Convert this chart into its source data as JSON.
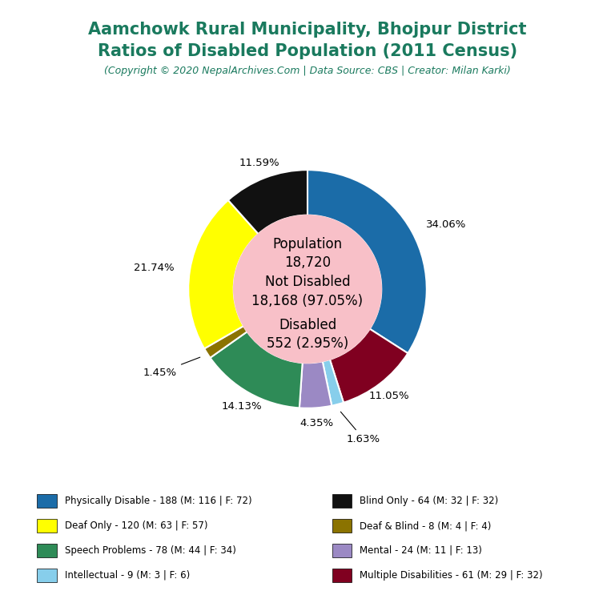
{
  "title_line1": "Aamchowk Rural Municipality, Bhojpur District",
  "title_line2": "Ratios of Disabled Population (2011 Census)",
  "subtitle": "(Copyright © 2020 NepalArchives.Com | Data Source: CBS | Creator: Milan Karki)",
  "title_color": "#1a7a5e",
  "subtitle_color": "#1a7a5e",
  "background_color": "#ffffff",
  "center_bg": "#f8c0c8",
  "slices": [
    {
      "label": "Physically Disable - 188 (M: 116 | F: 72)",
      "value": 188,
      "pct": 34.06,
      "color": "#1b6ca8"
    },
    {
      "label": "Multiple Disabilities - 61 (M: 29 | F: 32)",
      "value": 61,
      "pct": 11.05,
      "color": "#800020"
    },
    {
      "label": "Intellectual - 9 (M: 3 | F: 6)",
      "value": 9,
      "pct": 1.63,
      "color": "#87ceeb"
    },
    {
      "label": "Mental - 24 (M: 11 | F: 13)",
      "value": 24,
      "pct": 4.35,
      "color": "#9b89c4"
    },
    {
      "label": "Speech Problems - 78 (M: 44 | F: 34)",
      "value": 78,
      "pct": 14.13,
      "color": "#2e8b57"
    },
    {
      "label": "Deaf & Blind - 8 (M: 4 | F: 4)",
      "value": 8,
      "pct": 1.45,
      "color": "#8b7300"
    },
    {
      "label": "Deaf Only - 120 (M: 63 | F: 57)",
      "value": 120,
      "pct": 21.74,
      "color": "#ffff00"
    },
    {
      "label": "Blind Only - 64 (M: 32 | F: 32)",
      "value": 64,
      "pct": 11.59,
      "color": "#111111"
    }
  ],
  "legend_entries": [
    {
      "label": "Physically Disable - 188 (M: 116 | F: 72)",
      "color": "#1b6ca8"
    },
    {
      "label": "Deaf Only - 120 (M: 63 | F: 57)",
      "color": "#ffff00"
    },
    {
      "label": "Speech Problems - 78 (M: 44 | F: 34)",
      "color": "#2e8b57"
    },
    {
      "label": "Intellectual - 9 (M: 3 | F: 6)",
      "color": "#87ceeb"
    },
    {
      "label": "Blind Only - 64 (M: 32 | F: 32)",
      "color": "#111111"
    },
    {
      "label": "Deaf & Blind - 8 (M: 4 | F: 4)",
      "color": "#8b7300"
    },
    {
      "label": "Mental - 24 (M: 11 | F: 13)",
      "color": "#9b89c4"
    },
    {
      "label": "Multiple Disabilities - 61 (M: 29 | F: 32)",
      "color": "#800020"
    }
  ]
}
